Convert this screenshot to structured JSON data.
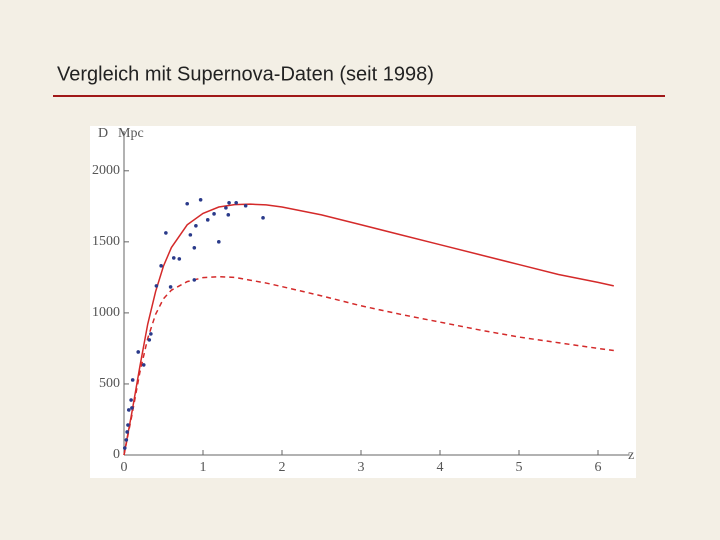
{
  "chart_data": {
    "type": "line",
    "title": "Vergleich mit Supernova-Daten (seit 1998)",
    "ylabel": "D",
    "yunit": "Mpc",
    "xlabel": "z",
    "xlim": [
      0,
      6.4
    ],
    "ylim": [
      0,
      2280
    ],
    "xticks": [
      0,
      1,
      2,
      3,
      4,
      5,
      6
    ],
    "yticks": [
      0,
      500,
      1000,
      1500,
      2000
    ],
    "series": [
      {
        "type": "line",
        "style": "solid",
        "color": "#d42a2a",
        "x": [
          0,
          0.1,
          0.2,
          0.3,
          0.4,
          0.5,
          0.6,
          0.8,
          1.0,
          1.2,
          1.4,
          1.6,
          1.8,
          2.0,
          2.5,
          3,
          3.5,
          4,
          4.5,
          5,
          5.5,
          6,
          6.2
        ],
        "values": [
          0,
          300,
          620,
          920,
          1150,
          1330,
          1460,
          1620,
          1700,
          1745,
          1762,
          1765,
          1760,
          1745,
          1690,
          1620,
          1550,
          1480,
          1410,
          1340,
          1270,
          1215,
          1190
        ]
      },
      {
        "type": "line",
        "style": "dashed",
        "color": "#d42a2a",
        "x": [
          0,
          0.1,
          0.2,
          0.3,
          0.4,
          0.5,
          0.6,
          0.8,
          1.0,
          1.2,
          1.4,
          1.6,
          1.8,
          2.0,
          2.5,
          3,
          3.5,
          4,
          4.5,
          5,
          5.5,
          6,
          6.2
        ],
        "values": [
          0,
          280,
          580,
          820,
          990,
          1100,
          1160,
          1220,
          1248,
          1255,
          1250,
          1230,
          1210,
          1185,
          1120,
          1050,
          990,
          935,
          880,
          830,
          790,
          750,
          735
        ]
      },
      {
        "type": "scatter",
        "color": "#2a3a8a",
        "x": [
          0.8,
          0.97,
          0.53,
          0.47,
          0.41,
          0.59,
          0.7,
          0.84,
          0.91,
          0.89,
          1.2,
          1.06,
          1.14,
          1.33,
          1.42,
          1.32,
          1.29,
          1.54,
          1.76,
          0.89,
          0.34,
          0.32,
          0.18,
          0.11,
          0.09,
          0.06,
          0.05,
          0.03,
          0.04,
          0.01,
          0.1,
          0.25,
          0.63
        ],
        "values": [
          1768,
          1796,
          1563,
          1331,
          1190,
          1183,
          1380,
          1549,
          1613,
          1458,
          1500,
          1655,
          1697,
          1775,
          1775,
          1690,
          1739,
          1754,
          1669,
          1232,
          852,
          810,
          725,
          528,
          387,
          317,
          211,
          106,
          162,
          49,
          331,
          634,
          1387
        ]
      }
    ]
  }
}
